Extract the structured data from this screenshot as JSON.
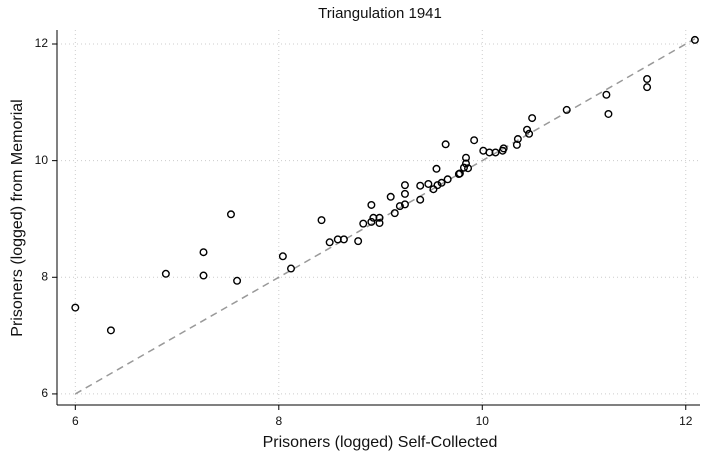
{
  "chart_data": {
    "type": "scatter",
    "title": "Triangulation 1941",
    "x_label": "Prisoners (logged) Self-Collected",
    "y_label": "Prisoners (logged) from Memorial",
    "xlim": [
      5.82,
      12.14
    ],
    "ylim": [
      5.81,
      12.24
    ],
    "xticks": [
      6,
      8,
      10,
      12
    ],
    "yticks": [
      6,
      8,
      10,
      12
    ],
    "grid": true,
    "marker_color": "#000000",
    "diagonal": true,
    "diagonal_color": "#999999",
    "series": [
      {
        "x": [
          12.09,
          11.62,
          11.62,
          11.22,
          11.24,
          10.83,
          10.49,
          10.44,
          10.46,
          10.35,
          10.34,
          10.21,
          10.2,
          10.13,
          10.07,
          10.01,
          9.92,
          9.64,
          9.84,
          9.84,
          9.82,
          9.86,
          9.78,
          9.77,
          9.66,
          9.55,
          9.6,
          9.56,
          9.52,
          9.47,
          9.39,
          9.39,
          9.24,
          9.24,
          9.1,
          9.24,
          9.19,
          9.14,
          8.91,
          8.99,
          8.93,
          8.91,
          8.99,
          8.83,
          8.42,
          8.78,
          8.64,
          8.58,
          8.5,
          7.53,
          8.04,
          8.12,
          7.26,
          7.26,
          6.89,
          7.59,
          6.0,
          6.35
        ],
        "values": [
          12.07,
          11.4,
          11.26,
          11.13,
          10.8,
          10.87,
          10.73,
          10.53,
          10.46,
          10.37,
          10.27,
          10.21,
          10.17,
          10.14,
          10.14,
          10.17,
          10.35,
          10.28,
          10.05,
          9.95,
          9.88,
          9.87,
          9.78,
          9.77,
          9.68,
          9.86,
          9.62,
          9.58,
          9.51,
          9.6,
          9.57,
          9.33,
          9.58,
          9.43,
          9.38,
          9.25,
          9.22,
          9.1,
          9.24,
          9.02,
          9.02,
          8.95,
          8.93,
          8.92,
          8.98,
          8.62,
          8.65,
          8.65,
          8.6,
          9.08,
          8.36,
          8.15,
          8.43,
          8.03,
          8.06,
          7.94,
          7.48,
          7.09
        ]
      }
    ]
  }
}
